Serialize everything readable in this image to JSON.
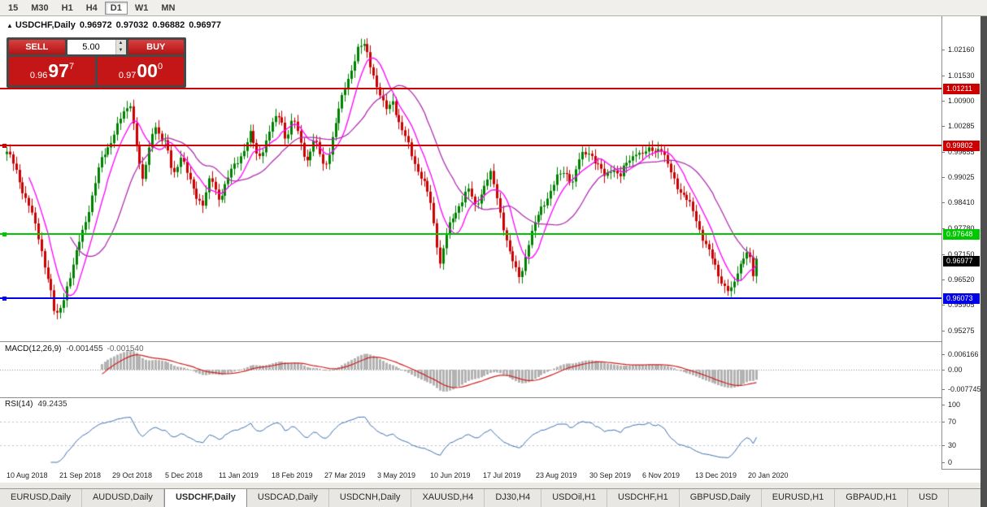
{
  "toolbar": {
    "timeframes": [
      {
        "label": "15",
        "active": false
      },
      {
        "label": "M30",
        "active": false
      },
      {
        "label": "H1",
        "active": false
      },
      {
        "label": "H4",
        "active": false
      },
      {
        "label": "D1",
        "active": true
      },
      {
        "label": "W1",
        "active": false
      },
      {
        "label": "MN",
        "active": false
      }
    ]
  },
  "chart_header": {
    "marker": "▲",
    "title": "USDCHF,Daily",
    "open": "0.96972",
    "high": "0.97032",
    "low": "0.96882",
    "close": "0.96977"
  },
  "trade_panel": {
    "sell_label": "SELL",
    "buy_label": "BUY",
    "volume": "5.00",
    "spinner_up": "▲",
    "spinner_down": "▼",
    "sell_price": {
      "prefix": "0.96",
      "big": "97",
      "sup": "7"
    },
    "buy_price": {
      "prefix": "0.97",
      "big": "00",
      "sup": "0"
    }
  },
  "price_axis": {
    "min": 0.9501,
    "max": 1.0298,
    "ticks": [
      {
        "label": "1.02160",
        "value": 1.0216
      },
      {
        "label": "1.01530",
        "value": 1.0153
      },
      {
        "label": "1.00900",
        "value": 1.009
      },
      {
        "label": "1.00285",
        "value": 1.00285
      },
      {
        "label": "0.99655",
        "value": 0.99655
      },
      {
        "label": "0.99025",
        "value": 0.99025
      },
      {
        "label": "0.98410",
        "value": 0.9841
      },
      {
        "label": "0.97780",
        "value": 0.9778
      },
      {
        "label": "0.97150",
        "value": 0.9715
      },
      {
        "label": "0.96520",
        "value": 0.9652
      },
      {
        "label": "0.95905",
        "value": 0.95905
      },
      {
        "label": "0.95275",
        "value": 0.95275
      }
    ]
  },
  "levels": [
    {
      "label": "1.01211",
      "value": 1.01211,
      "color": "#cc0000",
      "handle": false
    },
    {
      "label": "0.99802",
      "value": 0.99802,
      "color": "#cc0000",
      "handle": true
    },
    {
      "label": "0.97648",
      "value": 0.97648,
      "color": "#00c800",
      "handle": true
    },
    {
      "label": "0.96073",
      "value": 0.96073,
      "color": "#0000e8",
      "handle": true
    }
  ],
  "current_price": {
    "label": "0.96977",
    "value": 0.96977,
    "tag_color": "#000000"
  },
  "macd_panel": {
    "name": "MACD(12,26,9)",
    "value1": "-0.001455",
    "value2": "-0.001540",
    "ticks": [
      {
        "label": "0.006166",
        "value": 0.006166
      },
      {
        "label": "0.00",
        "value": 0
      },
      {
        "label": "-0.007745",
        "value": -0.007745
      }
    ]
  },
  "rsi_panel": {
    "name": "RSI(14)",
    "value": "49.2435",
    "ticks": [
      {
        "label": "100",
        "value": 100
      },
      {
        "label": "70",
        "value": 70
      },
      {
        "label": "30",
        "value": 30
      },
      {
        "label": "0",
        "value": 0
      }
    ],
    "levels": [
      70,
      30
    ]
  },
  "x_axis": {
    "labels": [
      "10 Aug 2018",
      "21 Sep 2018",
      "29 Oct 2018",
      "5 Dec 2018",
      "11 Jan 2019",
      "18 Feb 2019",
      "27 Mar 2019",
      "3 May 2019",
      "10 Jun 2019",
      "17 Jul 2019",
      "23 Aug 2019",
      "30 Sep 2019",
      "6 Nov 2019",
      "13 Dec 2019",
      "20 Jan 2020"
    ]
  },
  "tabs": [
    {
      "label": "EURUSD,Daily",
      "active": false
    },
    {
      "label": "AUDUSD,Daily",
      "active": false
    },
    {
      "label": "USDCHF,Daily",
      "active": true
    },
    {
      "label": "USDCAD,Daily",
      "active": false
    },
    {
      "label": "USDCNH,Daily",
      "active": false
    },
    {
      "label": "XAUUSD,H4",
      "active": false
    },
    {
      "label": "DJ30,H4",
      "active": false
    },
    {
      "label": "USDOil,H1",
      "active": false
    },
    {
      "label": "USDCHF,H1",
      "active": false
    },
    {
      "label": "GBPUSD,Daily",
      "active": false
    },
    {
      "label": "EURUSD,H1",
      "active": false
    },
    {
      "label": "GBPAUD,H1",
      "active": false
    },
    {
      "label": "USD",
      "active": false
    }
  ],
  "chart_data": {
    "type": "candlestick",
    "symbol": "USDCHF",
    "timeframe": "Daily",
    "price_range": [
      0.9501,
      1.0298
    ],
    "candle_count": 238,
    "up_color": "#008000",
    "down_color": "#cc0000",
    "ma_colors": [
      "#ff00ff",
      "#b030b0"
    ],
    "macd_histogram_color": "#b2b2b2",
    "macd_signal_color": "#d02020",
    "rsi_color": "#4070b0",
    "close_keypoints": [
      [
        0.0,
        0.996
      ],
      [
        0.008,
        0.993
      ],
      [
        0.015,
        0.9905
      ],
      [
        0.03,
        0.984
      ],
      [
        0.045,
        0.9735
      ],
      [
        0.057,
        0.964
      ],
      [
        0.065,
        0.9545
      ],
      [
        0.071,
        0.957
      ],
      [
        0.08,
        0.964
      ],
      [
        0.09,
        0.97
      ],
      [
        0.105,
        0.98
      ],
      [
        0.125,
        0.993
      ],
      [
        0.145,
        1.002
      ],
      [
        0.165,
        1.0095
      ],
      [
        0.181,
        0.988
      ],
      [
        0.197,
        1.004
      ],
      [
        0.205,
        0.999
      ],
      [
        0.212,
        0.9985
      ],
      [
        0.222,
        0.992
      ],
      [
        0.232,
        0.996
      ],
      [
        0.242,
        0.99
      ],
      [
        0.252,
        0.986
      ],
      [
        0.262,
        0.983
      ],
      [
        0.272,
        0.99
      ],
      [
        0.283,
        0.986
      ],
      [
        0.3,
        0.992
      ],
      [
        0.315,
        0.9965
      ],
      [
        0.325,
        1.0
      ],
      [
        0.335,
        0.9945
      ],
      [
        0.353,
        1.0035
      ],
      [
        0.365,
        1.006
      ],
      [
        0.372,
        1.0
      ],
      [
        0.382,
        1.004
      ],
      [
        0.392,
        0.998
      ],
      [
        0.4,
        0.9945
      ],
      [
        0.41,
        1.0
      ],
      [
        0.424,
        0.993
      ],
      [
        0.44,
        1.004
      ],
      [
        0.455,
        1.014
      ],
      [
        0.468,
        1.0215
      ],
      [
        0.478,
        1.023
      ],
      [
        0.488,
        1.0175
      ],
      [
        0.495,
        1.012
      ],
      [
        0.505,
        1.006
      ],
      [
        0.515,
        1.009
      ],
      [
        0.525,
        1.002
      ],
      [
        0.535,
        0.9985
      ],
      [
        0.545,
        0.9945
      ],
      [
        0.555,
        0.99
      ],
      [
        0.565,
        0.984
      ],
      [
        0.572,
        0.976
      ],
      [
        0.578,
        0.969
      ],
      [
        0.585,
        0.9745
      ],
      [
        0.595,
        0.98
      ],
      [
        0.605,
        0.985
      ],
      [
        0.615,
        0.988
      ],
      [
        0.625,
        0.983
      ],
      [
        0.636,
        0.988
      ],
      [
        0.645,
        0.9905
      ],
      [
        0.652,
        0.986
      ],
      [
        0.662,
        0.979
      ],
      [
        0.67,
        0.973
      ],
      [
        0.678,
        0.968
      ],
      [
        0.685,
        0.966
      ],
      [
        0.695,
        0.974
      ],
      [
        0.707,
        0.979
      ],
      [
        0.715,
        0.983
      ],
      [
        0.725,
        0.987
      ],
      [
        0.735,
        0.9905
      ],
      [
        0.745,
        0.9925
      ],
      [
        0.755,
        0.9895
      ],
      [
        0.765,
        0.9945
      ],
      [
        0.778,
        0.9965
      ],
      [
        0.788,
        0.993
      ],
      [
        0.798,
        0.9905
      ],
      [
        0.808,
        0.994
      ],
      [
        0.818,
        0.9905
      ],
      [
        0.828,
        0.9935
      ],
      [
        0.84,
        0.9965
      ],
      [
        0.848,
        0.995
      ],
      [
        0.86,
        0.9975
      ],
      [
        0.872,
        0.9985
      ],
      [
        0.882,
        0.993
      ],
      [
        0.895,
        0.988
      ],
      [
        0.905,
        0.9845
      ],
      [
        0.919,
        0.9805
      ],
      [
        0.932,
        0.9745
      ],
      [
        0.944,
        0.969
      ],
      [
        0.954,
        0.965
      ],
      [
        0.962,
        0.9622
      ],
      [
        0.968,
        0.9615
      ],
      [
        0.975,
        0.9665
      ],
      [
        0.984,
        0.972
      ],
      [
        0.99,
        0.973
      ],
      [
        0.995,
        0.9655
      ],
      [
        1.0,
        0.9698
      ]
    ]
  }
}
